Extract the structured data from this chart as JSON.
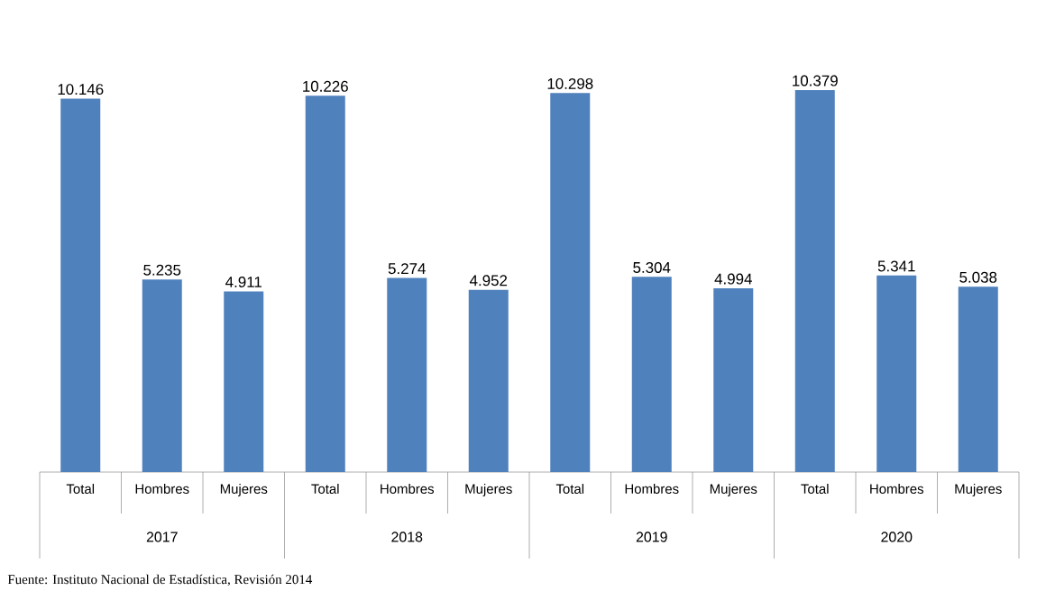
{
  "chart_data": {
    "type": "bar",
    "categories": [
      "Total",
      "Hombres",
      "Mujeres",
      "Total",
      "Hombres",
      "Mujeres",
      "Total",
      "Hombres",
      "Mujeres",
      "Total",
      "Hombres",
      "Mujeres"
    ],
    "values": [
      10.146,
      5.235,
      4.911,
      10.226,
      5.274,
      4.952,
      10.298,
      5.304,
      4.994,
      10.379,
      5.341,
      5.038
    ],
    "value_labels": [
      "10.146",
      "5.235",
      "4.911",
      "10.226",
      "5.274",
      "4.952",
      "10.298",
      "5.304",
      "4.994",
      "10.379",
      "5.341",
      "5.038"
    ],
    "color": "#4f81bd",
    "annotations": [
      "2017",
      "2018",
      "2019",
      "2020",
      "Fuente: Instituto Nacional de Estadística, Revisión 2014"
    ]
  }
}
